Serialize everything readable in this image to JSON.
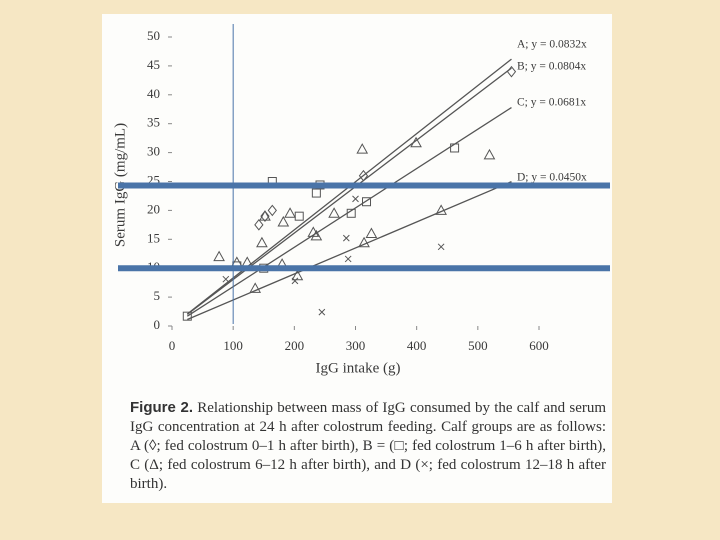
{
  "chart_data": {
    "type": "scatter",
    "x_label": "IgG intake (g)",
    "y_label": "Serum IgG (mg/mL)",
    "xlim": [
      0,
      600
    ],
    "ylim": [
      0,
      50
    ],
    "xticks": [
      0,
      100,
      200,
      300,
      400,
      500,
      600
    ],
    "yticks": [
      0,
      5,
      10,
      15,
      20,
      25,
      30,
      35,
      40,
      45,
      50
    ],
    "series": [
      {
        "name": "A; y = 0.0832x",
        "slope": 0.0832,
        "xrange": [
          25,
          555
        ],
        "marker": "diamond",
        "color": "#555555",
        "x": [
          142,
          152,
          164,
          313,
          555
        ],
        "y": [
          17.5,
          19,
          20,
          26,
          44
        ]
      },
      {
        "name": "B; y = 0.0804x",
        "slope": 0.0804,
        "xrange": [
          25,
          555
        ],
        "marker": "square",
        "color": "#555555",
        "x": [
          25,
          106,
          150,
          164,
          208,
          236,
          242,
          293,
          318,
          462
        ],
        "y": [
          1.7,
          10.4,
          10,
          25,
          19,
          23,
          24.4,
          19.5,
          21.5,
          30.8
        ]
      },
      {
        "name": "C; y = 0.0681x",
        "slope": 0.0681,
        "xrange": [
          25,
          555
        ],
        "marker": "triangle",
        "color": "#555555",
        "x": [
          77,
          106,
          123,
          136,
          147,
          152,
          180,
          182,
          193,
          205,
          231,
          236,
          265,
          311,
          314,
          326,
          399,
          440,
          519
        ],
        "y": [
          12,
          11,
          11,
          6.5,
          14.4,
          19,
          10.7,
          18,
          19.5,
          8.7,
          16.2,
          15.6,
          19.5,
          30.6,
          14.4,
          16,
          31.7,
          20,
          29.6
        ]
      },
      {
        "name": "D; y = 0.0450x",
        "slope": 0.045,
        "xrange": [
          25,
          555
        ],
        "marker": "cross",
        "color": "#555555",
        "x": [
          88,
          201,
          245,
          285,
          288,
          300,
          440
        ],
        "y": [
          8.1,
          7.8,
          2.4,
          15.2,
          11.6,
          22,
          13.7
        ]
      }
    ],
    "reference_lines": {
      "y": [
        24.3,
        10
      ],
      "x": [
        100
      ],
      "color": "#4a74a8"
    },
    "caption": {
      "label": "Figure 2.",
      "text": "Relationship between mass of IgG consumed by the calf and serum IgG concentration at 24 h after colostrum feeding. Calf groups are as follows: A (◊; fed colostrum 0–1 h after birth), B = (□; fed colostrum 1–6 h after birth), C (Δ; fed colostrum 6–12 h after birth), and D (×; fed colostrum 12–18 h after birth)."
    }
  }
}
